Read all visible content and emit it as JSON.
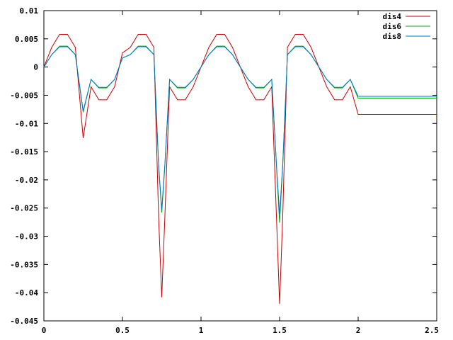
{
  "chart_data": {
    "type": "line",
    "title": "",
    "xlabel": "",
    "ylabel": "",
    "xlim": [
      0,
      2.5
    ],
    "ylim": [
      -0.045,
      0.01
    ],
    "grid": false,
    "legend_position": "top-right",
    "x_ticks": [
      {
        "value": 0,
        "label": "0"
      },
      {
        "value": 0.5,
        "label": "0.5"
      },
      {
        "value": 1,
        "label": "1"
      },
      {
        "value": 1.5,
        "label": "1.5"
      },
      {
        "value": 2,
        "label": "2"
      },
      {
        "value": 2.5,
        "label": "2.5"
      }
    ],
    "y_ticks": [
      {
        "value": 0.01,
        "label": "0.01"
      },
      {
        "value": 0.005,
        "label": "0.005"
      },
      {
        "value": 0,
        "label": "0"
      },
      {
        "value": -0.005,
        "label": "-0.005"
      },
      {
        "value": -0.01,
        "label": "-0.01"
      },
      {
        "value": -0.015,
        "label": "-0.015"
      },
      {
        "value": -0.02,
        "label": "-0.02"
      },
      {
        "value": -0.025,
        "label": "-0.025"
      },
      {
        "value": -0.03,
        "label": "-0.03"
      },
      {
        "value": -0.035,
        "label": "-0.035"
      },
      {
        "value": -0.04,
        "label": "-0.04"
      },
      {
        "value": -0.045,
        "label": "-0.045"
      }
    ],
    "series": [
      {
        "name": "dis4",
        "color": "#cc0000",
        "points": [
          [
            0,
            0
          ],
          [
            0.05,
            0.0035
          ],
          [
            0.1,
            0.0058
          ],
          [
            0.15,
            0.0058
          ],
          [
            0.2,
            0.0035
          ],
          [
            0.25,
            -0.0126
          ],
          [
            0.3,
            -0.0035
          ],
          [
            0.35,
            -0.0058
          ],
          [
            0.4,
            -0.0058
          ],
          [
            0.45,
            -0.0035
          ],
          [
            0.5,
            0.0025
          ],
          [
            0.55,
            0.0035
          ],
          [
            0.6,
            0.0058
          ],
          [
            0.65,
            0.0058
          ],
          [
            0.7,
            0.0035
          ],
          [
            0.73,
            -0.0265
          ],
          [
            0.75,
            -0.0408
          ],
          [
            0.77,
            -0.0265
          ],
          [
            0.8,
            -0.0035
          ],
          [
            0.85,
            -0.0058
          ],
          [
            0.9,
            -0.0058
          ],
          [
            0.95,
            -0.0035
          ],
          [
            1,
            0
          ],
          [
            1.05,
            0.0035
          ],
          [
            1.1,
            0.0058
          ],
          [
            1.15,
            0.0058
          ],
          [
            1.2,
            0.0035
          ],
          [
            1.25,
            0
          ],
          [
            1.3,
            -0.0035
          ],
          [
            1.35,
            -0.0058
          ],
          [
            1.4,
            -0.0058
          ],
          [
            1.45,
            -0.0035
          ],
          [
            1.48,
            -0.0265
          ],
          [
            1.5,
            -0.042
          ],
          [
            1.52,
            -0.0265
          ],
          [
            1.55,
            0.0035
          ],
          [
            1.6,
            0.0058
          ],
          [
            1.65,
            0.0058
          ],
          [
            1.7,
            0.0035
          ],
          [
            1.75,
            0
          ],
          [
            1.8,
            -0.0035
          ],
          [
            1.85,
            -0.0058
          ],
          [
            1.9,
            -0.0058
          ],
          [
            1.95,
            -0.0035
          ],
          [
            2,
            -0.0084
          ],
          [
            2.5,
            -0.0084
          ]
        ]
      },
      {
        "name": "dis6",
        "color": "#00aa00",
        "points": [
          [
            0,
            0
          ],
          [
            0.05,
            0.0022
          ],
          [
            0.1,
            0.0037
          ],
          [
            0.15,
            0.0037
          ],
          [
            0.2,
            0.0022
          ],
          [
            0.25,
            -0.008
          ],
          [
            0.3,
            -0.0022
          ],
          [
            0.35,
            -0.0037
          ],
          [
            0.4,
            -0.0037
          ],
          [
            0.45,
            -0.0022
          ],
          [
            0.5,
            0.0016
          ],
          [
            0.55,
            0.0022
          ],
          [
            0.6,
            0.0037
          ],
          [
            0.65,
            0.0037
          ],
          [
            0.7,
            0.0022
          ],
          [
            0.73,
            -0.0175
          ],
          [
            0.75,
            -0.0258
          ],
          [
            0.77,
            -0.0175
          ],
          [
            0.8,
            -0.0022
          ],
          [
            0.85,
            -0.0037
          ],
          [
            0.9,
            -0.0037
          ],
          [
            0.95,
            -0.0022
          ],
          [
            1,
            0
          ],
          [
            1.05,
            0.0022
          ],
          [
            1.1,
            0.0037
          ],
          [
            1.15,
            0.0037
          ],
          [
            1.2,
            0.0022
          ],
          [
            1.25,
            0
          ],
          [
            1.3,
            -0.0022
          ],
          [
            1.35,
            -0.0037
          ],
          [
            1.4,
            -0.0037
          ],
          [
            1.45,
            -0.0022
          ],
          [
            1.48,
            -0.0175
          ],
          [
            1.5,
            -0.0276
          ],
          [
            1.52,
            -0.0175
          ],
          [
            1.55,
            0.0022
          ],
          [
            1.6,
            0.0037
          ],
          [
            1.65,
            0.0037
          ],
          [
            1.7,
            0.0022
          ],
          [
            1.75,
            0
          ],
          [
            1.8,
            -0.0022
          ],
          [
            1.85,
            -0.0037
          ],
          [
            1.9,
            -0.0037
          ],
          [
            1.95,
            -0.0022
          ],
          [
            2,
            -0.0055
          ],
          [
            2.5,
            -0.0055
          ]
        ]
      },
      {
        "name": "dis8",
        "color": "#0077cc",
        "points": [
          [
            0,
            0
          ],
          [
            0.05,
            0.0022
          ],
          [
            0.1,
            0.0036
          ],
          [
            0.15,
            0.0036
          ],
          [
            0.2,
            0.0022
          ],
          [
            0.25,
            -0.0078
          ],
          [
            0.3,
            -0.0022
          ],
          [
            0.35,
            -0.0036
          ],
          [
            0.4,
            -0.0036
          ],
          [
            0.45,
            -0.0022
          ],
          [
            0.5,
            0.0016
          ],
          [
            0.55,
            0.0022
          ],
          [
            0.6,
            0.0036
          ],
          [
            0.65,
            0.0036
          ],
          [
            0.7,
            0.0022
          ],
          [
            0.73,
            -0.0172
          ],
          [
            0.75,
            -0.0253
          ],
          [
            0.77,
            -0.0172
          ],
          [
            0.8,
            -0.0022
          ],
          [
            0.85,
            -0.0036
          ],
          [
            0.9,
            -0.0036
          ],
          [
            0.95,
            -0.0022
          ],
          [
            1,
            0
          ],
          [
            1.05,
            0.0022
          ],
          [
            1.1,
            0.0036
          ],
          [
            1.15,
            0.0036
          ],
          [
            1.2,
            0.0022
          ],
          [
            1.25,
            0
          ],
          [
            1.3,
            -0.0022
          ],
          [
            1.35,
            -0.0036
          ],
          [
            1.4,
            -0.0036
          ],
          [
            1.45,
            -0.0022
          ],
          [
            1.48,
            -0.0172
          ],
          [
            1.5,
            -0.0262
          ],
          [
            1.52,
            -0.0172
          ],
          [
            1.55,
            0.0022
          ],
          [
            1.6,
            0.0036
          ],
          [
            1.65,
            0.0036
          ],
          [
            1.7,
            0.0022
          ],
          [
            1.75,
            0
          ],
          [
            1.8,
            -0.0022
          ],
          [
            1.85,
            -0.0036
          ],
          [
            1.9,
            -0.0036
          ],
          [
            1.95,
            -0.0022
          ],
          [
            2,
            -0.0052
          ],
          [
            2.5,
            -0.0052
          ]
        ]
      }
    ]
  }
}
